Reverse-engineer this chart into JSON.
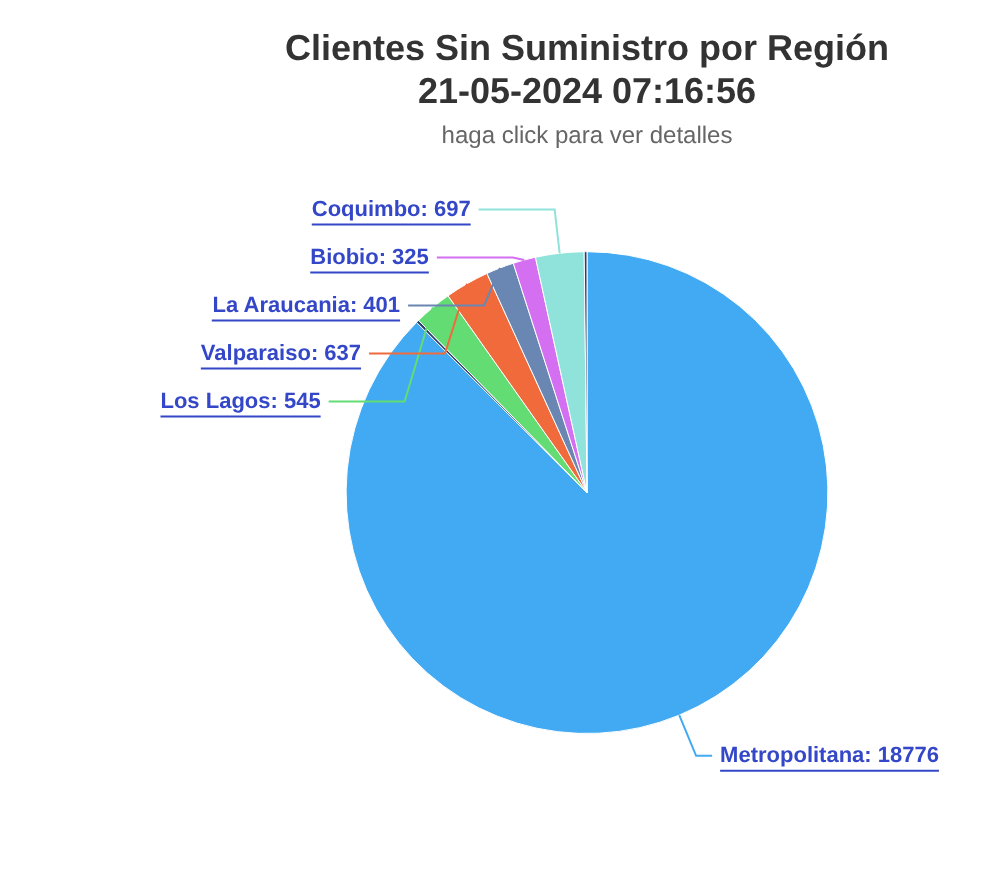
{
  "chart_data": {
    "type": "pie",
    "title": "Clientes Sin Suministro por Región\n21-05-2024 07:16:56",
    "subtitle": "haga click para ver detalles",
    "categories": [
      "Metropolitana: 18776",
      null,
      "Los Lagos: 545",
      "Valparaiso: 637",
      "La Araucania: 401",
      "Biobio: 325",
      "Coquimbo: 697",
      null
    ],
    "values": [
      18776,
      40,
      545,
      637,
      401,
      325,
      697,
      40
    ],
    "colors": [
      "#41aaf2",
      "#2c3e70",
      "#63dc74",
      "#f06a3c",
      "#6a86b2",
      "#d46ff2",
      "#8fe3da",
      "#2c3e70"
    ],
    "legend": false
  }
}
